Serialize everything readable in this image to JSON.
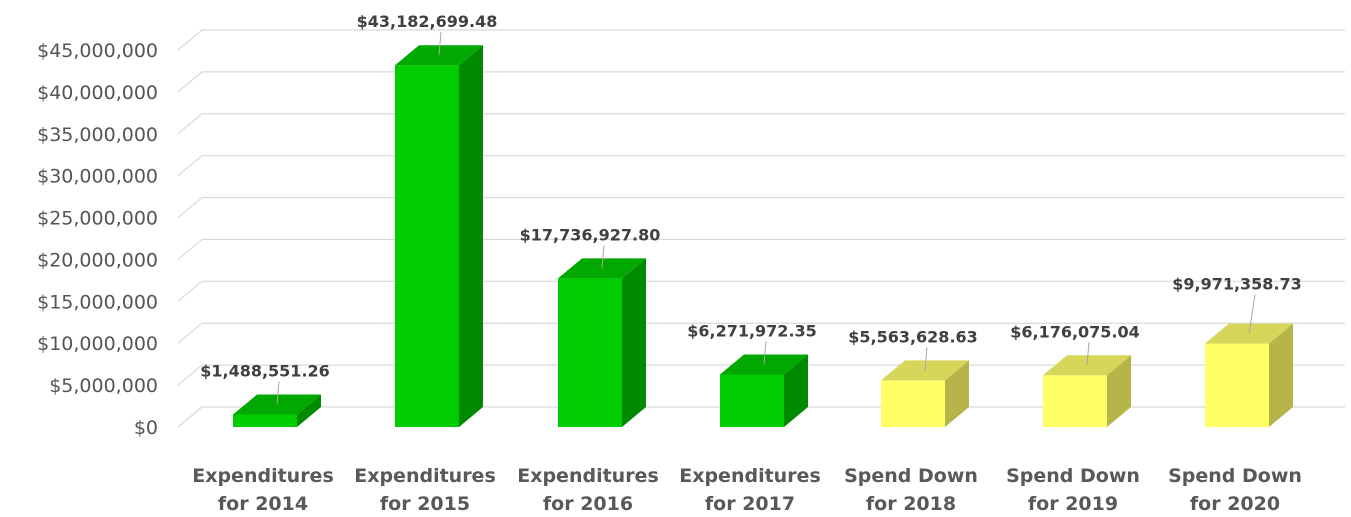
{
  "chart_data": {
    "type": "bar",
    "title": "",
    "xlabel": "",
    "ylabel": "",
    "ylim": [
      0,
      45000000
    ],
    "yticks": [
      0,
      5000000,
      10000000,
      15000000,
      20000000,
      25000000,
      30000000,
      35000000,
      40000000,
      45000000
    ],
    "ytick_labels": [
      "$0",
      "$5,000,000",
      "$10,000,000",
      "$15,000,000",
      "$20,000,000",
      "$25,000,000",
      "$30,000,000",
      "$35,000,000",
      "$40,000,000",
      "$45,000,000"
    ],
    "grid": true,
    "legend": "none",
    "style": "3d-column",
    "categories": [
      [
        "Expenditures",
        "for 2014"
      ],
      [
        "Expenditures",
        "for 2015"
      ],
      [
        "Expenditures",
        "for 2016"
      ],
      [
        "Expenditures",
        "for 2017"
      ],
      [
        "Spend Down",
        "for 2018"
      ],
      [
        "Spend Down",
        "for 2019"
      ],
      [
        "Spend Down",
        "for 2020"
      ]
    ],
    "values": [
      1488551.26,
      43182699.48,
      17736927.8,
      6271972.35,
      5563628.63,
      6176075.04,
      9971358.73
    ],
    "data_labels": [
      "$1,488,551.26",
      "$43,182,699.48",
      "$17,736,927.80",
      "$6,271,972.35",
      "$5,563,628.63",
      "$6,176,075.04",
      "$9,971,358.73"
    ],
    "bar_colors": [
      "#00cc00",
      "#00cc00",
      "#00cc00",
      "#00cc00",
      "#ffff66",
      "#ffff66",
      "#ffff66"
    ],
    "bar_side_colors": [
      "#008a00",
      "#008a00",
      "#008a00",
      "#008a00",
      "#b5b54a",
      "#b5b54a",
      "#b5b54a"
    ],
    "bar_top_colors": [
      "#00a800",
      "#00a800",
      "#00a800",
      "#00a800",
      "#d6d65a",
      "#d6d65a",
      "#d6d65a"
    ],
    "grid_color": "#d9d9d9"
  }
}
